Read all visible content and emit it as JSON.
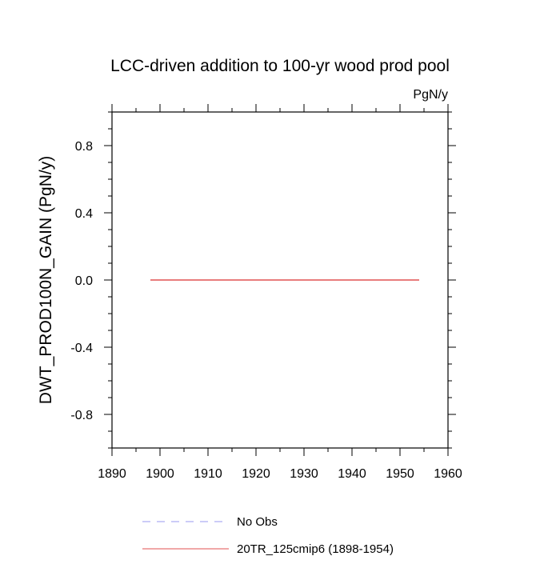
{
  "chart_data": {
    "type": "line",
    "title": "LCC-driven addition to 100-yr wood prod pool",
    "units_label": "PgN/y",
    "ylabel": "DWT_PROD100N_GAIN  (PgN/y)",
    "xlabel": "",
    "xlim": [
      1890,
      1960
    ],
    "ylim": [
      -1.0,
      1.0
    ],
    "x_ticks": [
      1890,
      1900,
      1910,
      1920,
      1930,
      1940,
      1950,
      1960
    ],
    "x_tick_labels": [
      "1890",
      "1900",
      "1910",
      "1920",
      "1930",
      "1940",
      "1950",
      "1960"
    ],
    "y_ticks": [
      -0.8,
      -0.4,
      0.0,
      0.4,
      0.8
    ],
    "y_tick_labels": [
      "-0.8",
      "-0.4",
      "0.0",
      "0.4",
      "0.8"
    ],
    "grid": false,
    "legend_position": "bottom",
    "series": [
      {
        "name": "No Obs",
        "color": "#9a9af0",
        "dash": "dashed",
        "x": [],
        "y": []
      },
      {
        "name": "20TR_125cmip6 (1898-1954)",
        "color": "#e05050",
        "dash": "solid",
        "x": [
          1898,
          1954
        ],
        "y": [
          0.0,
          0.0
        ]
      }
    ]
  }
}
